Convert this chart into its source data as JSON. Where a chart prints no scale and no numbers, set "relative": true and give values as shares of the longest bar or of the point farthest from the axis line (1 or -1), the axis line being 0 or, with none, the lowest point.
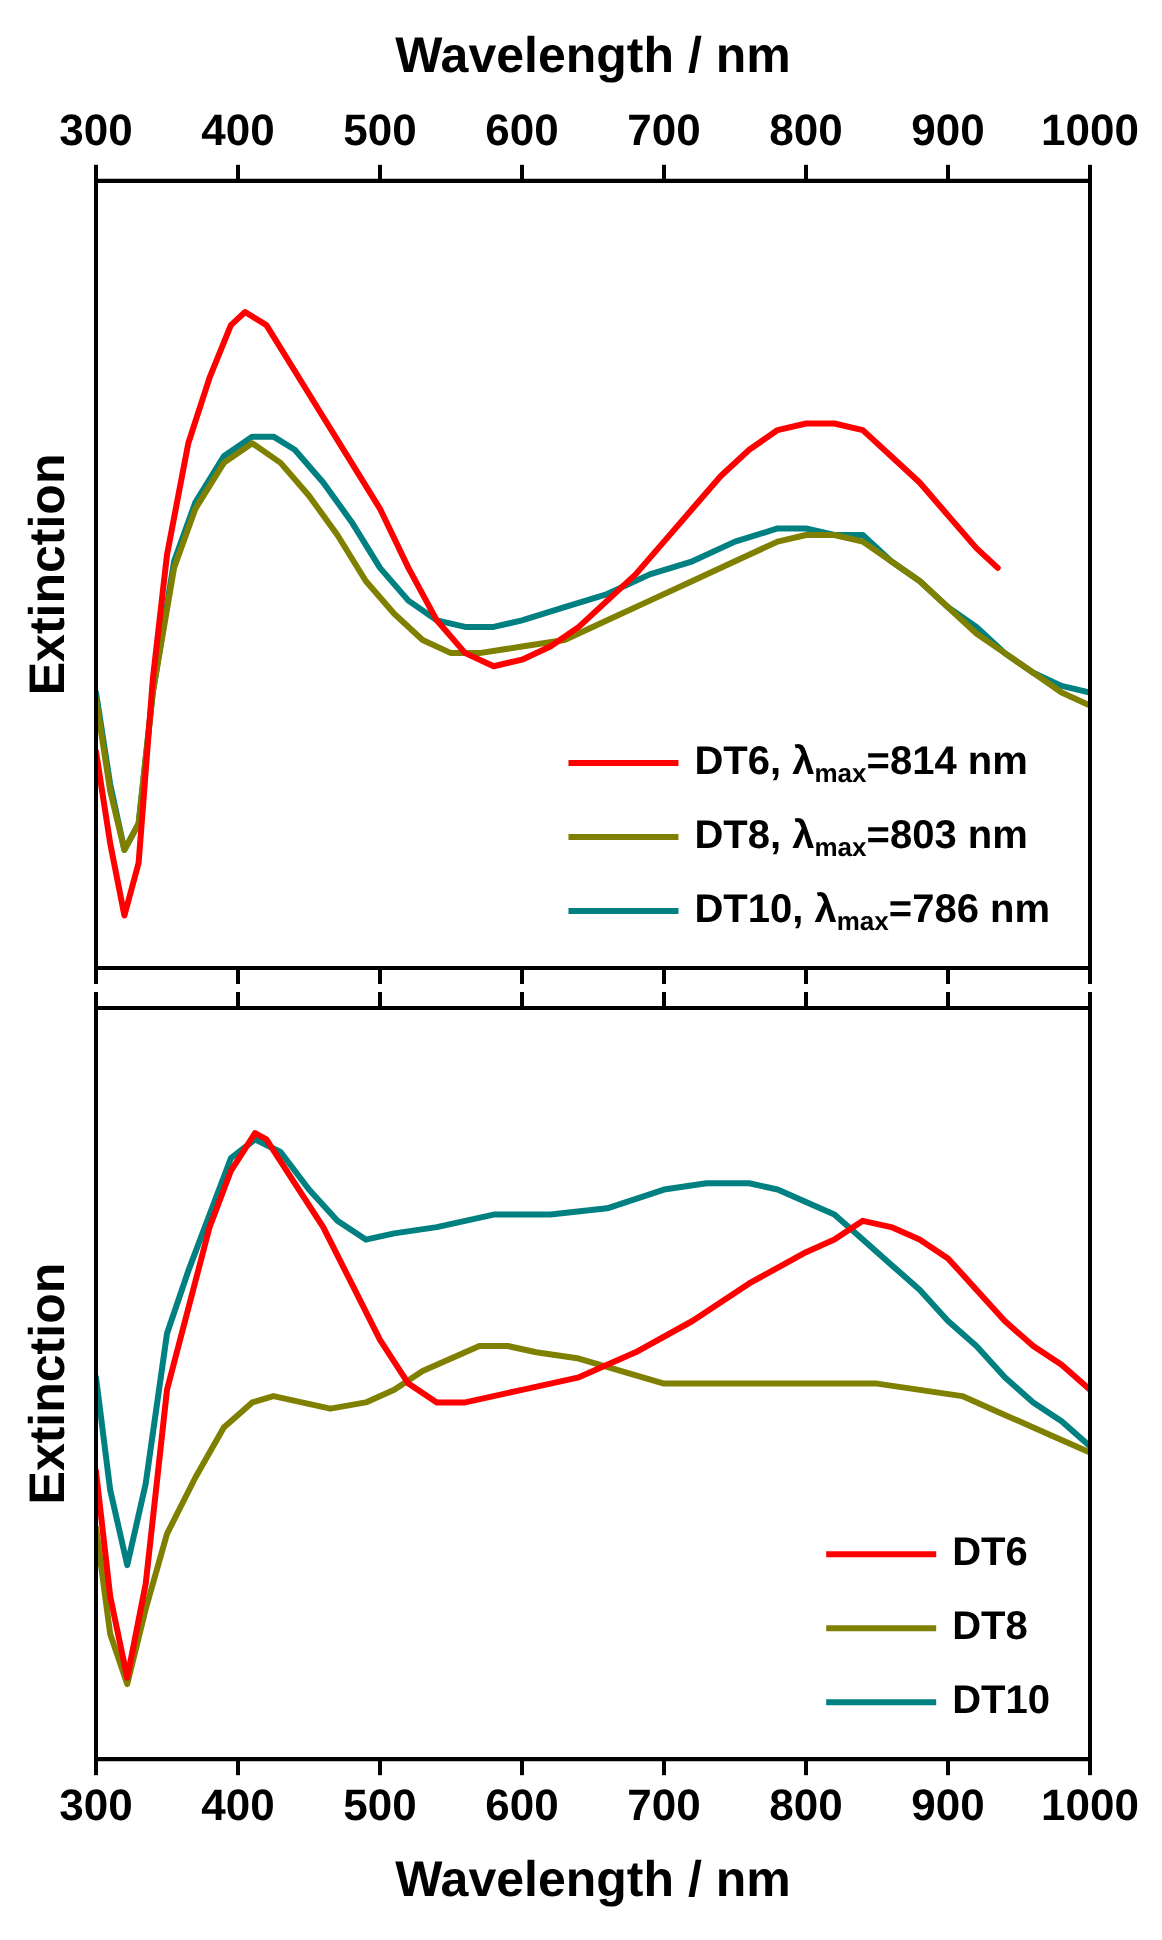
{
  "chart_data": [
    {
      "type": "line",
      "relative": true,
      "ylabel": "Extinction",
      "xlabel": "Wavelength / nm",
      "xlim": [
        300,
        1000
      ],
      "xticks": [
        300,
        400,
        500,
        600,
        700,
        800,
        900,
        1000
      ],
      "legend": "bottom right",
      "grid": false,
      "marker": "none",
      "line_style": "solid",
      "series": [
        {
          "name": "DT6, λ$_{max}$=814 nm",
          "color": "#ff0000",
          "x": [
            300,
            310,
            320,
            330,
            340,
            350,
            365,
            380,
            395,
            405,
            420,
            440,
            460,
            480,
            500,
            520,
            540,
            560,
            580,
            600,
            620,
            640,
            660,
            680,
            700,
            720,
            740,
            760,
            780,
            800,
            820,
            840,
            860,
            880,
            900,
            920,
            935
          ],
          "values": [
            0.33,
            0.19,
            0.08,
            0.16,
            0.44,
            0.63,
            0.8,
            0.9,
            0.98,
            1.0,
            0.98,
            0.91,
            0.84,
            0.77,
            0.7,
            0.61,
            0.53,
            0.48,
            0.46,
            0.47,
            0.49,
            0.52,
            0.56,
            0.6,
            0.65,
            0.7,
            0.75,
            0.79,
            0.82,
            0.83,
            0.83,
            0.82,
            0.78,
            0.74,
            0.69,
            0.64,
            0.61
          ]
        },
        {
          "name": "DT8, λ$_{max}$=803 nm",
          "color": "#808000",
          "x": [
            300,
            310,
            320,
            330,
            340,
            355,
            370,
            390,
            410,
            430,
            450,
            470,
            490,
            510,
            530,
            550,
            570,
            600,
            630,
            660,
            690,
            720,
            750,
            780,
            800,
            820,
            840,
            860,
            880,
            900,
            920,
            940,
            960,
            980,
            1000
          ],
          "values": [
            0.41,
            0.27,
            0.18,
            0.22,
            0.42,
            0.61,
            0.7,
            0.77,
            0.8,
            0.77,
            0.72,
            0.66,
            0.59,
            0.54,
            0.5,
            0.48,
            0.48,
            0.49,
            0.5,
            0.53,
            0.56,
            0.59,
            0.62,
            0.65,
            0.66,
            0.66,
            0.65,
            0.62,
            0.59,
            0.55,
            0.51,
            0.48,
            0.45,
            0.42,
            0.4
          ]
        },
        {
          "name": "DT10, λ$_{max}$=786 nm",
          "color": "#008080",
          "x": [
            300,
            310,
            320,
            330,
            340,
            355,
            370,
            390,
            410,
            425,
            440,
            460,
            480,
            500,
            520,
            540,
            560,
            580,
            600,
            630,
            660,
            690,
            720,
            750,
            780,
            800,
            820,
            840,
            860,
            880,
            900,
            920,
            940,
            960,
            980,
            1000
          ],
          "values": [
            0.42,
            0.28,
            0.18,
            0.22,
            0.42,
            0.62,
            0.71,
            0.78,
            0.81,
            0.81,
            0.79,
            0.74,
            0.68,
            0.61,
            0.56,
            0.53,
            0.52,
            0.52,
            0.53,
            0.55,
            0.57,
            0.6,
            0.62,
            0.65,
            0.67,
            0.67,
            0.66,
            0.66,
            0.62,
            0.59,
            0.55,
            0.52,
            0.48,
            0.45,
            0.43,
            0.42
          ]
        }
      ]
    },
    {
      "type": "line",
      "relative": true,
      "ylabel": "Extinction",
      "xlabel": "Wavelength / nm",
      "xlim": [
        300,
        1000
      ],
      "xticks": [
        300,
        400,
        500,
        600,
        700,
        800,
        900,
        1000
      ],
      "legend": "bottom right",
      "grid": false,
      "marker": "none",
      "line_style": "solid",
      "series": [
        {
          "name": "DT6",
          "color": "#ff0000",
          "x": [
            300,
            310,
            322,
            335,
            350,
            365,
            380,
            395,
            412,
            420,
            440,
            460,
            480,
            500,
            520,
            540,
            560,
            600,
            640,
            680,
            720,
            760,
            800,
            820,
            840,
            860,
            880,
            900,
            920,
            940,
            960,
            980,
            1000
          ],
          "values": [
            0.46,
            0.26,
            0.13,
            0.28,
            0.59,
            0.72,
            0.85,
            0.94,
            1.0,
            0.99,
            0.92,
            0.85,
            0.76,
            0.67,
            0.6,
            0.57,
            0.57,
            0.59,
            0.61,
            0.65,
            0.7,
            0.76,
            0.81,
            0.83,
            0.86,
            0.85,
            0.83,
            0.8,
            0.75,
            0.7,
            0.66,
            0.63,
            0.59
          ]
        },
        {
          "name": "DT8",
          "color": "#808000",
          "x": [
            300,
            310,
            322,
            335,
            350,
            370,
            390,
            410,
            425,
            445,
            465,
            490,
            510,
            530,
            550,
            570,
            590,
            610,
            640,
            670,
            700,
            740,
            780,
            820,
            850,
            880,
            910,
            940,
            970,
            1000
          ],
          "values": [
            0.37,
            0.2,
            0.12,
            0.24,
            0.36,
            0.45,
            0.53,
            0.57,
            0.58,
            0.57,
            0.56,
            0.57,
            0.59,
            0.62,
            0.64,
            0.66,
            0.66,
            0.65,
            0.64,
            0.62,
            0.6,
            0.6,
            0.6,
            0.6,
            0.6,
            0.59,
            0.58,
            0.55,
            0.52,
            0.49
          ]
        },
        {
          "name": "DT10",
          "color": "#008080",
          "x": [
            300,
            310,
            322,
            335,
            350,
            365,
            380,
            395,
            412,
            430,
            450,
            470,
            490,
            510,
            540,
            580,
            620,
            660,
            700,
            730,
            760,
            780,
            800,
            820,
            840,
            860,
            880,
            900,
            920,
            940,
            960,
            980,
            1000
          ],
          "values": [
            0.61,
            0.43,
            0.31,
            0.44,
            0.68,
            0.78,
            0.87,
            0.96,
            0.99,
            0.97,
            0.91,
            0.86,
            0.83,
            0.84,
            0.85,
            0.87,
            0.87,
            0.88,
            0.91,
            0.92,
            0.92,
            0.91,
            0.89,
            0.87,
            0.83,
            0.79,
            0.75,
            0.7,
            0.66,
            0.61,
            0.57,
            0.54,
            0.5
          ]
        }
      ]
    }
  ]
}
